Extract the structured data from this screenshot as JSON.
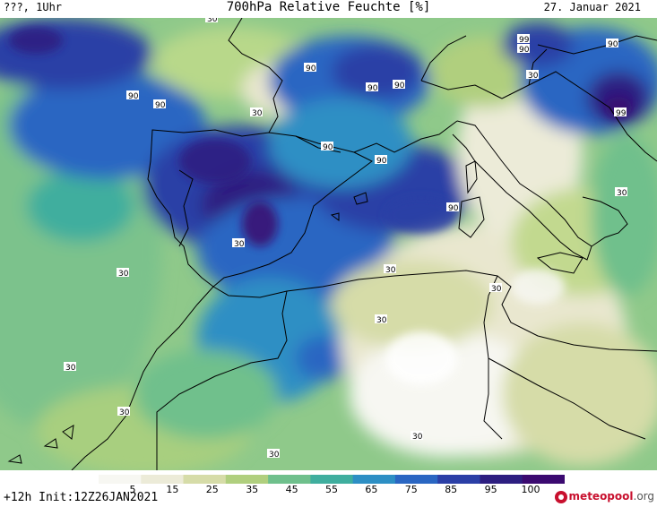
{
  "header": {
    "left_text": "???, 1Uhr",
    "title": "700hPa Relative Feuchte [%]",
    "date": "27. Januar 2021"
  },
  "footer": {
    "init_text": "+12h Init:12Z26JAN2021",
    "brand_main": "meteopool",
    "brand_tld": ".org"
  },
  "colorbar": {
    "ticks": [
      "5",
      "15",
      "25",
      "35",
      "45",
      "55",
      "65",
      "75",
      "85",
      "95",
      "100"
    ],
    "colors": [
      "#f7f7f2",
      "#ecebd8",
      "#d6dca8",
      "#b0cf7e",
      "#6fc08c",
      "#3fae9e",
      "#2d8fc4",
      "#2a66c2",
      "#2b3fa6",
      "#2d1e80",
      "#3b0a70"
    ]
  },
  "contour_labels": [
    "30",
    "90",
    "90",
    "90",
    "90",
    "99",
    "90",
    "90",
    "30",
    "90",
    "30",
    "90",
    "90",
    "99",
    "30",
    "90",
    "30",
    "30",
    "30",
    "30",
    "30",
    "30",
    "30",
    "30",
    "30"
  ]
}
